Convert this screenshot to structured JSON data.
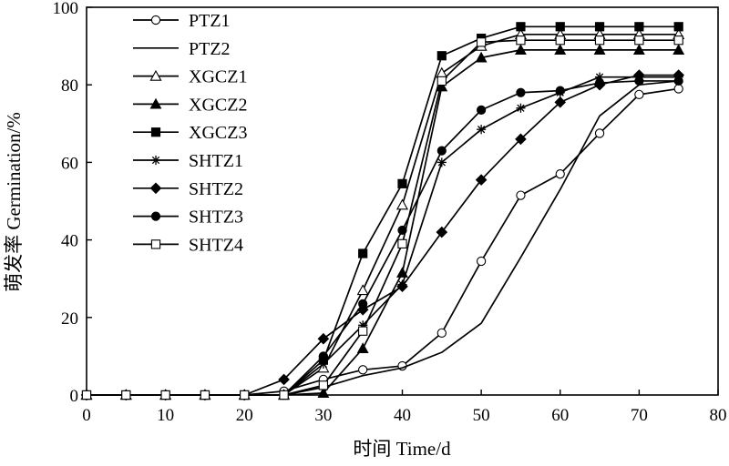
{
  "chart_data": {
    "type": "line",
    "title": "",
    "xlabel": "时间 Time/d",
    "ylabel": "萌发率 Germination/%",
    "xlim": [
      0,
      80
    ],
    "ylim": [
      0,
      100
    ],
    "xticks": [
      0,
      10,
      20,
      30,
      40,
      50,
      60,
      70,
      80
    ],
    "yticks": [
      0,
      20,
      40,
      60,
      80,
      100
    ],
    "grid": false,
    "legend_position": "top-left",
    "line_color": "#000000",
    "x": [
      0,
      5,
      10,
      15,
      20,
      25,
      30,
      35,
      40,
      45,
      50,
      55,
      60,
      65,
      70,
      75
    ],
    "series": [
      {
        "name": "PTZ1",
        "marker": "circle-open",
        "values": [
          0,
          0,
          0,
          0,
          0,
          1,
          4,
          6.5,
          7.5,
          16,
          34.5,
          51.5,
          57,
          67.5,
          77.5,
          79
        ]
      },
      {
        "name": "PTZ2",
        "marker": "none",
        "values": [
          0,
          0,
          0,
          0,
          0,
          0,
          2,
          5,
          7,
          11,
          18.5,
          35.5,
          53,
          72,
          80,
          81
        ]
      },
      {
        "name": "XGCZ1",
        "marker": "triangle-open",
        "values": [
          0,
          0,
          0,
          0,
          0,
          0,
          7,
          27,
          49,
          83,
          90,
          93,
          93,
          93,
          93,
          93
        ]
      },
      {
        "name": "XGCZ2",
        "marker": "triangle-filled",
        "values": [
          0,
          0,
          0,
          0,
          0,
          0,
          0.5,
          12,
          31.5,
          79.5,
          87,
          89,
          89,
          89,
          89,
          89
        ]
      },
      {
        "name": "XGCZ3",
        "marker": "square-filled",
        "values": [
          0,
          0,
          0,
          0,
          0,
          0,
          9,
          36.5,
          54.5,
          87.5,
          92,
          95,
          95,
          95,
          95,
          95
        ]
      },
      {
        "name": "SHTZ1",
        "marker": "asterisk",
        "values": [
          0,
          0,
          0,
          0,
          0,
          0,
          8,
          18,
          28.5,
          60,
          68.5,
          74,
          78,
          82,
          82,
          82
        ]
      },
      {
        "name": "SHTZ2",
        "marker": "diamond-filled",
        "values": [
          0,
          0,
          0,
          0,
          0,
          4,
          14.5,
          22,
          28,
          42,
          55.5,
          66,
          75.5,
          80,
          82.5,
          82.5
        ]
      },
      {
        "name": "SHTZ3",
        "marker": "circle-filled",
        "values": [
          0,
          0,
          0,
          0,
          0,
          0,
          10,
          23.5,
          42.5,
          63,
          73.5,
          78,
          78.5,
          80.5,
          81,
          81
        ]
      },
      {
        "name": "SHTZ4",
        "marker": "square-open",
        "values": [
          0,
          0,
          0,
          0,
          0,
          0,
          2.5,
          16.5,
          39,
          81,
          91,
          91.5,
          91.5,
          91.5,
          91.5,
          91.5
        ]
      }
    ]
  }
}
